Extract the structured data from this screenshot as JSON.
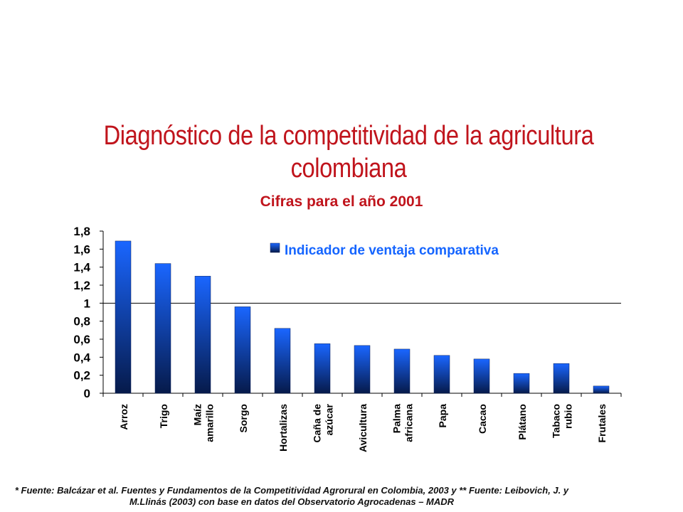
{
  "slide": {
    "title": "Diagnóstico de la competitividad de la agricultura colombiana",
    "subtitle": "Cifras para el año 2001",
    "footnote": "* Fuente: Balcázar et al. Fuentes y Fundamentos de la Competitividad Agrorural en Colombia, 2003 y ** Fuente: Leibovich, J. y M.Llinás (2003) con base en datos del Observatorio Agrocadenas – MADR"
  },
  "chart_data": {
    "type": "bar",
    "title": "",
    "xlabel": "",
    "ylabel": "",
    "categories": [
      [
        "Arroz"
      ],
      [
        "Trigo"
      ],
      [
        "Maíz",
        "amarillo"
      ],
      [
        "Sorgo"
      ],
      [
        "Hortalizas"
      ],
      [
        "Caña de",
        "azúcar"
      ],
      [
        "Avicultura"
      ],
      [
        "Palma",
        "africana"
      ],
      [
        "Papa"
      ],
      [
        "Cacao"
      ],
      [
        "Plátano"
      ],
      [
        "Tabaco",
        "rubio"
      ],
      [
        "Frutales"
      ]
    ],
    "series": [
      {
        "name": "Indicador de ventaja comparativa",
        "values": [
          1.69,
          1.44,
          1.3,
          0.96,
          0.72,
          0.55,
          0.53,
          0.49,
          0.42,
          0.38,
          0.22,
          0.33,
          0.08
        ]
      }
    ],
    "ylim": [
      0,
      1.8
    ],
    "yticks": [
      "0",
      "0,2",
      "0,4",
      "0,6",
      "0,8",
      "1",
      "1,2",
      "1,4",
      "1,6",
      "1,8"
    ],
    "reference_line": 1,
    "legend_position": "top-right",
    "grid": false,
    "colors": {
      "bar_top": "#1a66ff",
      "bar_bottom": "#061a4a",
      "axis": "#000000",
      "text": "#000000"
    }
  }
}
